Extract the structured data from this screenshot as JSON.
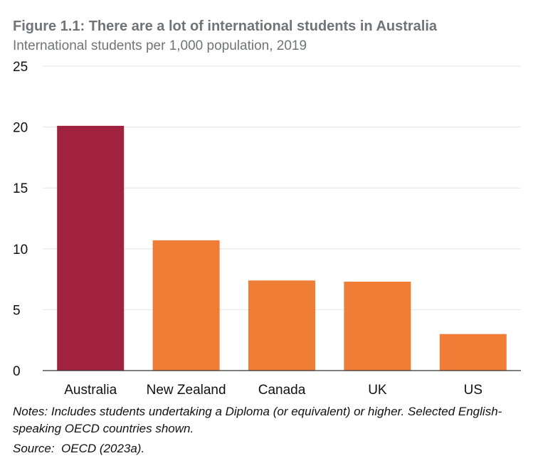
{
  "chart_data": {
    "type": "bar",
    "title": "Figure 1.1: There are a lot of international students in Australia",
    "subtitle": "International students per 1,000 population, 2019",
    "categories": [
      "Australia",
      "New Zealand",
      "Canada",
      "UK",
      "US"
    ],
    "values": [
      20.1,
      10.7,
      7.4,
      7.3,
      3.0
    ],
    "ylim": [
      0,
      25
    ],
    "yticks": [
      0,
      5,
      10,
      15,
      20,
      25
    ],
    "grid": true,
    "colors": {
      "highlight": "#a0223f",
      "default": "#ef7d35",
      "grid": "#e3e3e3",
      "axis": "#333333"
    },
    "highlight_index": 0
  },
  "notes": "Notes: Includes students undertaking a Diploma (or equivalent) or higher. Selected English-speaking OECD countries shown.",
  "source": "Source:  OECD (2023a)."
}
